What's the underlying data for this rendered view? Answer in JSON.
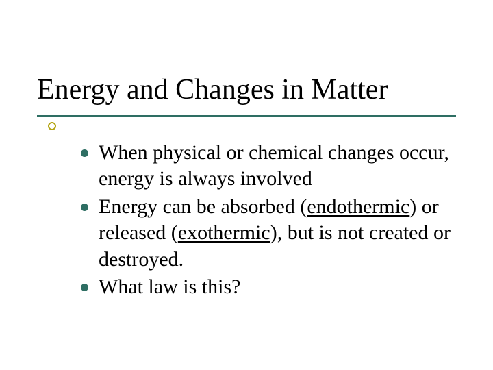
{
  "colors": {
    "rule": "#2e6e63",
    "accent": "#b4a514",
    "bullet": "#2e6e63",
    "text": "#000000",
    "background": "#ffffff"
  },
  "typography": {
    "title_fontsize": 42,
    "body_fontsize": 30,
    "font_family": "Times New Roman"
  },
  "title": "Energy and Changes in Matter",
  "bullets": [
    {
      "prefix": "When ",
      "rest": "physical or chemical changes occur, energy is always involved",
      "key1": "",
      "mid1": "",
      "key2": "",
      "tail": ""
    },
    {
      "prefix": "Energy ",
      "rest": "can be absorbed (",
      "key1": "endothermic",
      "mid1": ") or released (",
      "key2": "exothermic",
      "tail": "), but is not created or destroyed."
    },
    {
      "prefix": "What ",
      "rest": "law is this?",
      "key1": "",
      "mid1": "",
      "key2": "",
      "tail": ""
    }
  ]
}
